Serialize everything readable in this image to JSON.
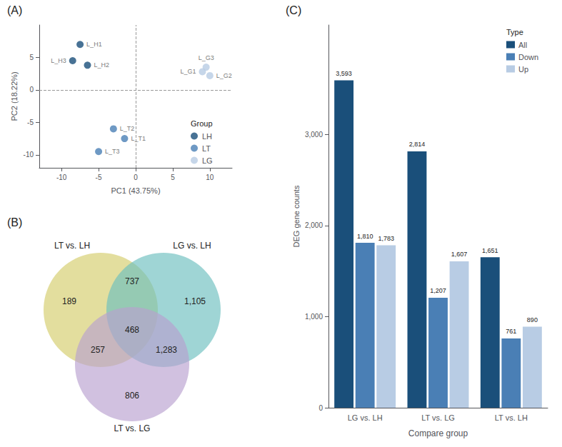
{
  "chart_data": [
    {
      "type": "scatter",
      "title": "(A)",
      "x_label": "PC1 (43.75%)",
      "y_label": "PC2 (18.22%)",
      "series": [
        {
          "name": "LH",
          "color": "#1a4f7a",
          "x": [
            -7.5,
            -6.5,
            -8.5
          ],
          "y": [
            7.0,
            3.8,
            4.5
          ],
          "labels": [
            "L_H1",
            "L_H2",
            "L_H3"
          ]
        },
        {
          "name": "LT",
          "color": "#4a7fb5",
          "x": [
            -1.5,
            -3.0,
            -5.0
          ],
          "y": [
            -7.5,
            -6.0,
            -9.5
          ],
          "labels": [
            "L_T1",
            "L_T2",
            "L_T3"
          ]
        },
        {
          "name": "LG",
          "color": "#b8cce4",
          "x": [
            9.0,
            10.0,
            9.5
          ],
          "y": [
            2.8,
            2.2,
            3.5
          ],
          "labels": [
            "L_G1",
            "L_G2",
            "L_G3"
          ]
        }
      ],
      "xlim": [
        -13,
        13
      ],
      "ylim": [
        -12,
        10
      ],
      "xticks": [
        -10,
        -5,
        0,
        5,
        10
      ],
      "yticks": [
        -10,
        -5,
        0,
        5
      ],
      "hlines": [
        0
      ],
      "vlines": [
        0
      ],
      "legend": "lower right",
      "legend_title": "Group",
      "grid": false
    },
    {
      "type": "venn",
      "title": "(B)",
      "sets": [
        {
          "name": "LT vs. LH",
          "color": "#d4cc6a"
        },
        {
          "name": "LG vs. LH",
          "color": "#6bbfbf"
        },
        {
          "name": "LT vs. LG",
          "color": "#b8a0d0"
        }
      ],
      "regions": [
        [
          "LT vs. LH"
        ],
        [
          "LG vs. LH"
        ],
        [
          "LT vs. LG"
        ],
        [
          "LT vs. LH",
          "LG vs. LH"
        ],
        [
          "LT vs. LH",
          "LT vs. LG"
        ],
        [
          "LG vs. LH",
          "LT vs. LG"
        ],
        [
          "LT vs. LH",
          "LG vs. LH",
          "LT vs. LG"
        ]
      ],
      "values": [
        189,
        1105,
        806,
        737,
        257,
        1283,
        468
      ],
      "value_labels": [
        "189",
        "1,105",
        "806",
        "737",
        "257",
        "1,283",
        "468"
      ],
      "data_labels": true
    },
    {
      "type": "bar",
      "title": "(C)",
      "x_label": "Compare group",
      "y_label": "DEG gene counts",
      "categories": [
        "LG vs. LH",
        "LT vs. LG",
        "LT vs. LH"
      ],
      "series": [
        {
          "name": "All",
          "color": "#1a4f7a",
          "values": [
            3593,
            2814,
            1651
          ],
          "value_labels": [
            "3,593",
            "2,814",
            "1,651"
          ]
        },
        {
          "name": "Down",
          "color": "#4a7fb5",
          "values": [
            1810,
            1207,
            761
          ],
          "value_labels": [
            "1,810",
            "1,207",
            "761"
          ]
        },
        {
          "name": "Up",
          "color": "#b8cce4",
          "values": [
            1783,
            1607,
            890
          ],
          "value_labels": [
            "1,783",
            "1,607",
            "890"
          ]
        }
      ],
      "ylim": [
        0,
        4200
      ],
      "yticks": [
        0,
        {
          "value": 1000,
          "label": "1,000"
        },
        {
          "value": 2000,
          "label": "2,000"
        },
        {
          "value": 3000,
          "label": "3,000"
        }
      ],
      "legend": "upper right",
      "legend_title": "Type",
      "data_labels": true,
      "grid": false
    }
  ]
}
